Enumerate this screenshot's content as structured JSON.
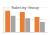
{
  "chart_data": {
    "type": "bar",
    "title": "Sales by Group",
    "categories": [
      null,
      null,
      null
    ],
    "series": [
      {
        "color": "#ed7d31",
        "values": [
          85,
          80,
          60
        ]
      },
      {
        "color": "#a5a5a5",
        "values": [
          65,
          55,
          40
        ]
      }
    ],
    "ylim": [
      0,
      100
    ],
    "yticks": [
      0,
      50,
      100
    ],
    "grid": true,
    "tick_labels": false
  }
}
